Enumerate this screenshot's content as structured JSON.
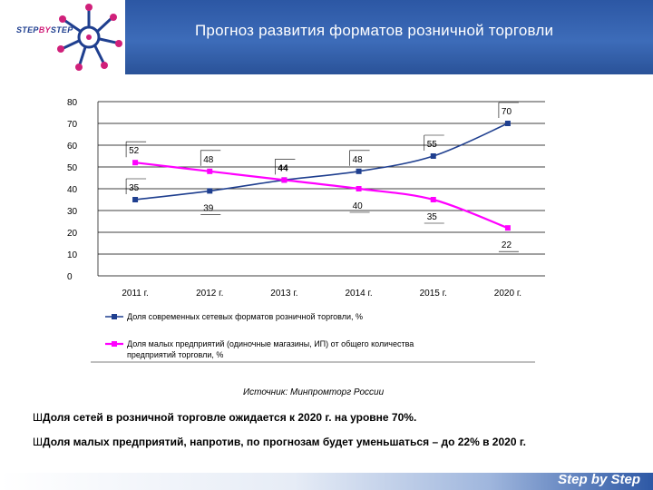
{
  "header": {
    "title": "Прогноз развития форматов розничной торговли",
    "logo_left": "STEP",
    "logo_mid": "BY",
    "logo_right": "STEP"
  },
  "colors": {
    "header": "#2c57a4",
    "series_modern": "#1f3f8f",
    "series_small": "#ff00ff",
    "grid": "#000000"
  },
  "chart_data": {
    "type": "line",
    "categories": [
      "2011 г.",
      "2012 г.",
      "2013 г.",
      "2014 г.",
      "2015 г.",
      "2020 г."
    ],
    "ylim": [
      0,
      80
    ],
    "yticks": [
      0,
      10,
      20,
      30,
      40,
      50,
      60,
      70,
      80
    ],
    "grid": true,
    "legend_position": "bottom",
    "series": [
      {
        "name": "Доля современных сетевых форматов розничной торговли, %",
        "values": [
          35,
          39,
          44,
          48,
          55,
          70
        ],
        "color": "#1f3f8f",
        "marker": "square"
      },
      {
        "name": "Доля малых предприятий (одиночные магазины, ИП) от общего количества предприятий торговли, %",
        "values": [
          52,
          48,
          44,
          40,
          35,
          22
        ],
        "color": "#ff00ff",
        "marker": "square"
      }
    ]
  },
  "source": "Источник: Минпромторг России",
  "bullets": [
    {
      "marker": "Ш",
      "text": "Доля сетей в розничной торговле ожидается к 2020 г. на уровне 70%."
    },
    {
      "marker": "Ш",
      "text": "Доля малых предприятий, напротив, по прогнозам будет уменьшаться – до 22% в 2020 г."
    }
  ],
  "footer": {
    "brand": "Step by Step"
  }
}
